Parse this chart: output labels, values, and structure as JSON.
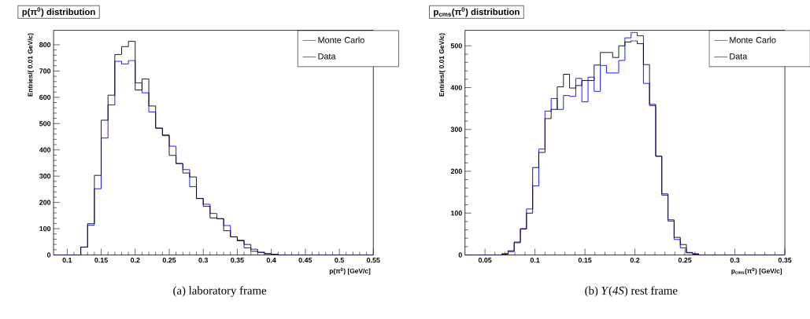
{
  "chart_data": [
    {
      "type": "histogram",
      "title": "p(π$^{0}$) distribution",
      "xlabel": "p(π$^{0}$) [GeV/c]",
      "ylabel": "Entries/( 0.01 GeV/c)",
      "annotations": [
        "(a) laboratory frame"
      ],
      "bins": [
        0.08,
        0.09,
        0.1,
        0.11,
        0.12,
        0.13,
        0.14,
        0.15,
        0.16,
        0.17,
        0.18,
        0.19,
        0.2,
        0.21,
        0.22,
        0.23,
        0.24,
        0.25,
        0.26,
        0.27,
        0.28,
        0.29,
        0.3,
        0.31,
        0.32,
        0.33,
        0.34,
        0.35,
        0.36,
        0.37,
        0.38,
        0.39,
        0.4,
        0.41,
        0.42,
        0.43,
        0.44,
        0.45,
        0.46,
        0.47,
        0.48,
        0.49,
        0.5,
        0.51,
        0.52,
        0.53,
        0.54,
        0.55
      ],
      "series": [
        {
          "name": "Monte Carlo",
          "color": "#0000ff",
          "values": [
            0,
            0,
            0,
            0,
            30,
            113,
            252,
            445,
            571,
            737,
            727,
            740,
            655,
            617,
            544,
            482,
            457,
            414,
            348,
            325,
            260,
            215,
            193,
            158,
            138,
            112,
            69,
            56,
            27,
            22,
            10,
            5,
            2,
            0,
            0,
            0,
            0,
            0,
            0,
            0,
            0,
            0,
            0,
            0,
            0,
            0,
            0
          ]
        },
        {
          "name": "Data",
          "color": "#000000",
          "values": [
            0,
            0,
            0,
            0,
            30,
            119,
            303,
            513,
            608,
            763,
            793,
            813,
            628,
            670,
            567,
            483,
            454,
            379,
            348,
            312,
            297,
            215,
            185,
            141,
            138,
            92,
            69,
            54,
            40,
            14,
            10,
            5,
            2,
            0,
            0,
            0,
            0,
            0,
            0,
            0,
            0,
            0,
            0,
            0,
            0,
            0,
            0
          ]
        }
      ],
      "xlim": [
        0.08,
        0.55
      ],
      "ylim": [
        0,
        855
      ],
      "xticks": [
        0.1,
        0.15,
        0.2,
        0.25,
        0.3,
        0.35,
        0.4,
        0.45,
        0.5,
        0.55
      ],
      "yticks": [
        0,
        100,
        200,
        300,
        400,
        500,
        600,
        700,
        800
      ],
      "legend": "top right"
    },
    {
      "type": "histogram",
      "title": "p$_{cms}$(π$^{0}$) distribution",
      "xlabel": "p$_{cms}$(π$^{0}$) [GeV/c]",
      "ylabel": "Entries/( 0.01 GeV/c)",
      "annotations": [
        "(b) *Υ*(*4S*) rest frame"
      ],
      "bins": [
        0.03,
        0.0362,
        0.0423,
        0.0485,
        0.0546,
        0.0608,
        0.0669,
        0.0731,
        0.0792,
        0.0854,
        0.0915,
        0.0977,
        0.1038,
        0.11,
        0.1162,
        0.1223,
        0.1285,
        0.1346,
        0.1408,
        0.1469,
        0.1531,
        0.1592,
        0.1654,
        0.1715,
        0.1777,
        0.1838,
        0.19,
        0.1962,
        0.2023,
        0.2085,
        0.2146,
        0.2208,
        0.2269,
        0.2331,
        0.2392,
        0.2454,
        0.2515,
        0.2577,
        0.2638,
        0.27,
        0.2762,
        0.2823,
        0.2885,
        0.2946,
        0.3008,
        0.3069,
        0.3131,
        0.3192,
        0.3254,
        0.3315,
        0.3377,
        0.3438,
        0.35
      ],
      "series": [
        {
          "name": "Monte Carlo",
          "color": "#0000ff",
          "values": [
            0,
            0,
            0,
            0,
            0,
            0,
            2,
            8,
            29,
            63,
            110,
            165,
            253,
            344,
            374,
            348,
            381,
            379,
            422,
            366,
            425,
            391,
            453,
            435,
            435,
            465,
            519,
            532,
            524,
            410,
            357,
            236,
            143,
            81,
            37,
            17,
            5,
            3,
            0,
            0,
            0,
            0,
            0,
            0,
            0,
            0,
            0,
            0,
            0,
            0,
            0,
            0
          ]
        },
        {
          "name": "Data",
          "color": "#000000",
          "values": [
            0,
            0,
            0,
            0,
            0,
            0,
            3,
            10,
            31,
            62,
            100,
            209,
            245,
            326,
            348,
            402,
            432,
            399,
            405,
            417,
            417,
            454,
            484,
            484,
            472,
            500,
            509,
            512,
            505,
            455,
            360,
            236,
            146,
            84,
            42,
            25,
            6,
            2,
            0,
            0,
            0,
            0,
            0,
            0,
            0,
            0,
            0,
            0,
            0,
            0,
            0,
            0
          ]
        }
      ],
      "xlim": [
        0.03,
        0.35
      ],
      "ylim": [
        0,
        537
      ],
      "xticks": [
        0.05,
        0.1,
        0.15,
        0.2,
        0.25,
        0.3,
        0.35
      ],
      "yticks": [
        0,
        100,
        200,
        300,
        400,
        500
      ],
      "legend": "top right"
    }
  ]
}
